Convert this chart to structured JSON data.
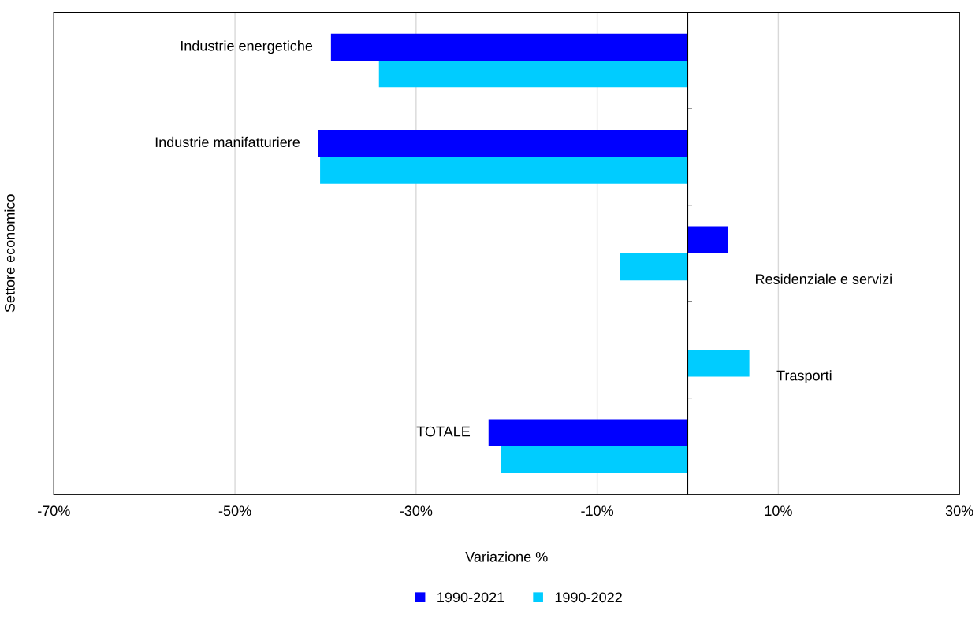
{
  "chart_data": {
    "type": "bar",
    "orientation": "horizontal",
    "xlabel": "Variazione %",
    "ylabel": "Settore economico",
    "categories": [
      "Industrie energetiche",
      "Industrie manifatturiere",
      "Residenziale e servizi",
      "Trasporti",
      "TOTALE"
    ],
    "series": [
      {
        "name": "1990-2021",
        "color": "#0000ff",
        "values": [
          -39.4,
          -40.8,
          4.4,
          -0.1,
          -22.0
        ]
      },
      {
        "name": "1990-2022",
        "color": "#00ccff",
        "values": [
          -34.1,
          -40.6,
          -7.5,
          6.8,
          -20.6
        ]
      }
    ],
    "xlim": [
      -70,
      30
    ],
    "xticks": [
      {
        "value": -70,
        "label": "-70%"
      },
      {
        "value": -50,
        "label": "-50%"
      },
      {
        "value": -30,
        "label": "-30%"
      },
      {
        "value": -10,
        "label": "-10%"
      },
      {
        "value": 10,
        "label": "10%"
      },
      {
        "value": 30,
        "label": "30%"
      }
    ],
    "grid": "x",
    "legend": "bottom"
  }
}
